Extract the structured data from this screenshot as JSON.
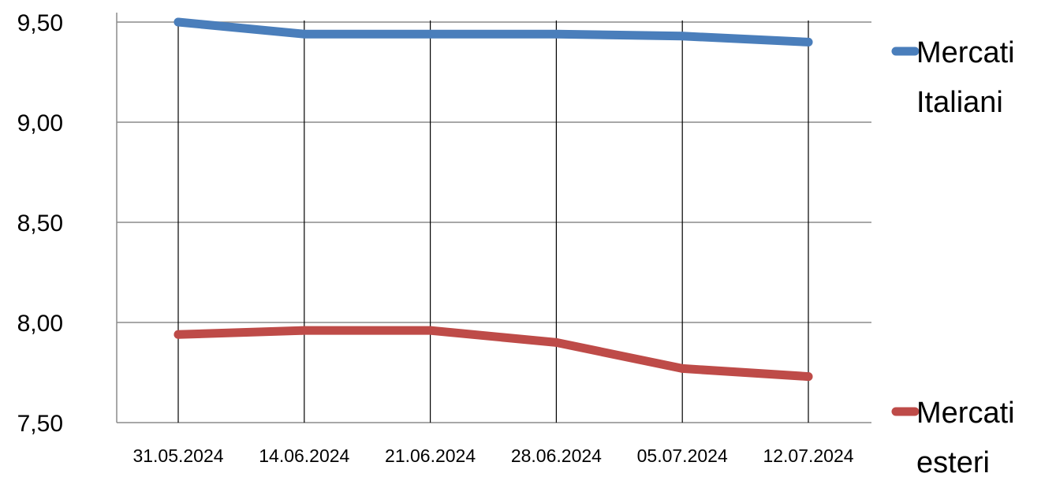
{
  "chart_data": {
    "type": "line",
    "categories": [
      "31.05.2024",
      "14.06.2024",
      "21.06.2024",
      "28.06.2024",
      "05.07.2024",
      "12.07.2024"
    ],
    "y_ticks": [
      "9,50",
      "9,00",
      "8,50",
      "8,00",
      "7,50"
    ],
    "y_tick_values": [
      9.5,
      9.0,
      8.5,
      8.0,
      7.5
    ],
    "ylim": [
      7.5,
      9.5
    ],
    "grid": "horizontal and vertical",
    "legend_position": "right",
    "series": [
      {
        "name_lines": [
          "Mercati",
          "Italiani"
        ],
        "color": "#4a7ebb",
        "values": [
          9.5,
          9.44,
          9.44,
          9.44,
          9.43,
          9.4
        ]
      },
      {
        "name_lines": [
          "Mercati",
          "esteri"
        ],
        "color": "#be4b48",
        "values": [
          7.94,
          7.96,
          7.96,
          7.9,
          7.77,
          7.73
        ]
      }
    ]
  }
}
